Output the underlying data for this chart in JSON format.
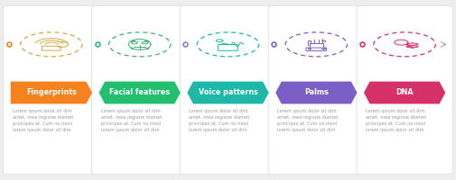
{
  "steps": [
    {
      "label": "Fingerprints",
      "color": "#F5821F",
      "dot_color": "#F5821F",
      "icon_color": "#D4A843",
      "text": "Lorem ipsum dolor sit dim\namet, mea regione diamet\nprincipes at. Cum no movi\nlorem ipsum dolor sit dim"
    },
    {
      "label": "Facial features",
      "color": "#22BF6F",
      "dot_color": "#22BF6F",
      "icon_color": "#3CB371",
      "text": "Lorem ipsum dolor sit dim\namet, mea regione diamet\nprincipes at. Cum no movi\nlorem ipsum dolor sit dim"
    },
    {
      "label": "Voice patterns",
      "color": "#1DB8A8",
      "dot_color": "#8B7FCC",
      "icon_color": "#1DB8A8",
      "text": "Lorem ipsum dolor sit dim\namet, mea regione diamet\nprincipes at. Cum no movi\nlorem ipsum dolor sit dim"
    },
    {
      "label": "Palms",
      "color": "#7B5EC6",
      "dot_color": "#7B5EC6",
      "icon_color": "#7B5EC6",
      "text": "Lorem ipsum dolor sit dim\namet, mea regione diamet\nprincipes at. Cum no movi\nlorem ipsum dolor sit dim"
    },
    {
      "label": "DNA",
      "color": "#D63068",
      "dot_color": "#D63068",
      "icon_color": "#D63068",
      "text": "Lorem ipsum dolor sit dim\namet, mea regione diamet\nprincipes at. Cum no movi\nlorem ipsum dolor sit dim"
    }
  ],
  "bg_color": "#EEEEEE",
  "card_color": "#FFFFFF",
  "card_border_color": "#DDDDDD",
  "timeline_color": "#CCCCCC",
  "arrow_label_fontsize": 5.8,
  "body_text_fontsize": 3.6,
  "body_text_color": "#999999"
}
